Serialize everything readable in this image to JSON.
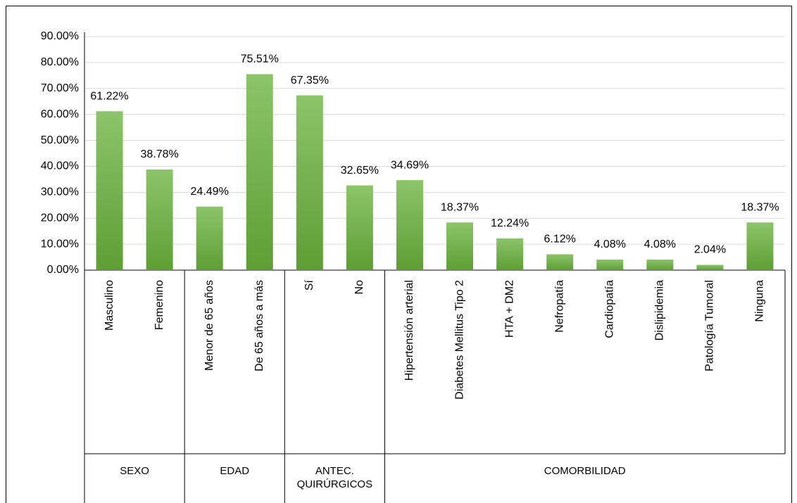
{
  "chart_data": {
    "type": "bar",
    "groups": [
      {
        "name": "SEXO",
        "categories": [
          "Masculino",
          "Femenino"
        ],
        "values": [
          61.22,
          38.78
        ],
        "value_labels": [
          "61.22%",
          "38.78%"
        ]
      },
      {
        "name": "EDAD",
        "categories": [
          "Menor de 65 años",
          "De 65 años a más"
        ],
        "values": [
          24.49,
          75.51
        ],
        "value_labels": [
          "24.49%",
          "75.51%"
        ]
      },
      {
        "name": "ANTEC. QUIRÚRGICOS",
        "categories": [
          "Sí",
          "No"
        ],
        "values": [
          67.35,
          32.65
        ],
        "value_labels": [
          "67.35%",
          "32.65%"
        ]
      },
      {
        "name": "COMORBILIDAD",
        "categories": [
          "Hipertensión arterial",
          "Diabetes Mellitus Tipo 2",
          "HTA + DM2",
          "Nefropatía",
          "Cardiopatía",
          "Dislipidemia",
          "Patología Tumoral",
          "Ninguna"
        ],
        "values": [
          34.69,
          18.37,
          12.24,
          6.12,
          4.08,
          4.08,
          2.04,
          18.37
        ],
        "value_labels": [
          "34.69%",
          "18.37%",
          "12.24%",
          "6.12%",
          "4.08%",
          "4.08%",
          "2.04%",
          "18.37%"
        ]
      }
    ],
    "color": "#70ad47",
    "ylim": [
      0,
      90
    ],
    "yticks": [
      {
        "value": 0,
        "label": "0.00%"
      },
      {
        "value": 10,
        "label": "10.00%"
      },
      {
        "value": 20,
        "label": "20.00%"
      },
      {
        "value": 30,
        "label": "30.00%"
      },
      {
        "value": 40,
        "label": "40.00%"
      },
      {
        "value": 50,
        "label": "50.00%"
      },
      {
        "value": 60,
        "label": "60.00%"
      },
      {
        "value": 70,
        "label": "70.00%"
      },
      {
        "value": 80,
        "label": "80.00%"
      },
      {
        "value": 90,
        "label": "90.00%"
      }
    ],
    "grid": true
  }
}
